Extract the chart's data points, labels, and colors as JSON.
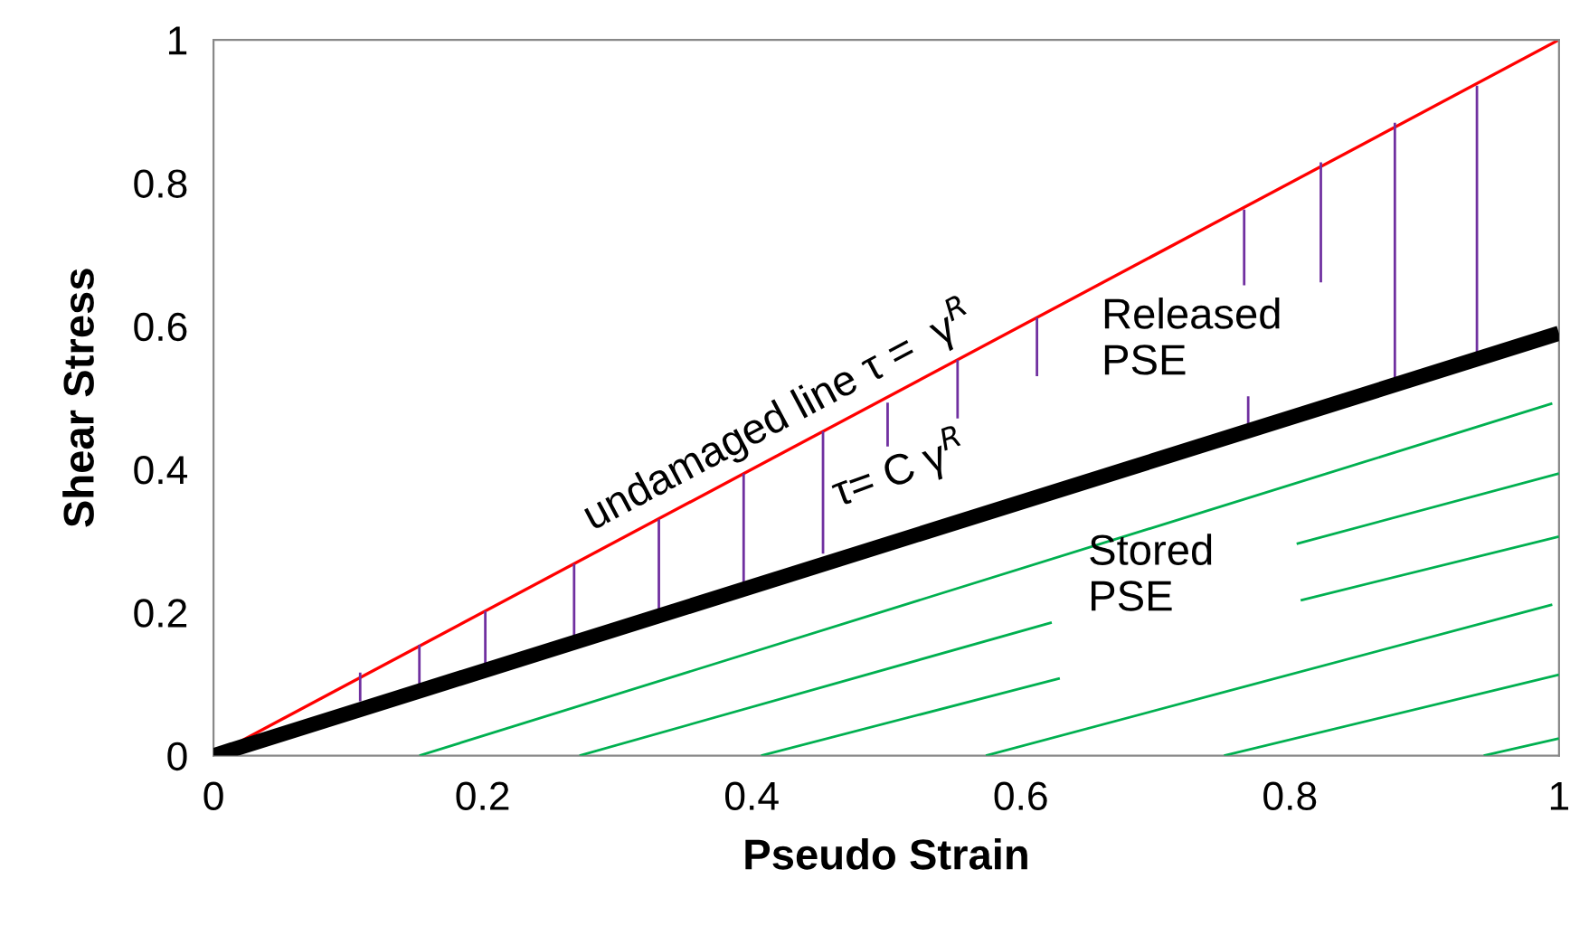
{
  "chart_data": {
    "type": "line",
    "xlabel": "Pseudo Strain",
    "ylabel": "Shear Stress",
    "xlim": [
      0,
      1
    ],
    "ylim": [
      0,
      1
    ],
    "xticks": [
      0,
      0.2,
      0.4,
      0.6,
      0.8,
      1
    ],
    "yticks": [
      0,
      0.2,
      0.4,
      0.6,
      0.8,
      1
    ],
    "grid": false,
    "legend": false,
    "marker": "none",
    "line_style": "solid",
    "series": [
      {
        "color": "#ff0000",
        "x": [
          0,
          1
        ],
        "values": [
          0,
          1
        ]
      },
      {
        "color": "#7030a0",
        "x": [
          0.109,
          0.109,
          null,
          0.153,
          0.153,
          null,
          0.202,
          0.202,
          null,
          0.268,
          0.268,
          null,
          0.331,
          0.331,
          null,
          0.394,
          0.394,
          null,
          0.453,
          0.453,
          null,
          0.501,
          0.501,
          null,
          0.553,
          0.553,
          null,
          0.612,
          0.612,
          null,
          0.766,
          0.766,
          null,
          0.769,
          0.769,
          null,
          0.823,
          0.823,
          null,
          0.878,
          0.878,
          null,
          0.939,
          0.939
        ],
        "values": [
          0.116,
          0.076,
          null,
          0.155,
          0.098,
          null,
          0.202,
          0.129,
          null,
          0.268,
          0.163,
          null,
          0.33,
          0.202,
          null,
          0.394,
          0.236,
          null,
          0.453,
          0.282,
          null,
          0.493,
          0.432,
          null,
          0.553,
          0.471,
          null,
          0.612,
          0.53,
          null,
          0.763,
          0.657,
          null,
          0.502,
          0.457,
          null,
          0.829,
          0.661,
          null,
          0.884,
          0.526,
          null,
          0.936,
          0.559
        ]
      },
      {
        "color": "#00b050",
        "x": [
          0.153,
          0.995,
          null,
          0.272,
          0.623,
          null,
          0.407,
          0.629,
          null,
          0.574,
          0.995,
          null,
          0.751,
          1.0,
          null,
          0.944,
          1.0,
          null,
          0.805,
          1.0,
          null,
          0.808,
          1.0
        ],
        "values": [
          0,
          0.492,
          null,
          0,
          0.186,
          null,
          0,
          0.108,
          null,
          0,
          0.211,
          null,
          0,
          0.113,
          null,
          0,
          0.024,
          null,
          0.296,
          0.394,
          null,
          0.217,
          0.306
        ]
      },
      {
        "color": "#000000",
        "x": [
          0,
          1
        ],
        "values": [
          0,
          0.59
        ]
      }
    ],
    "annotations": [
      "undamaged line τ =  γ$^{R}$",
      "τ= C γ$^{R}$",
      "Released\nPSE",
      "Stored\nPSE"
    ]
  }
}
